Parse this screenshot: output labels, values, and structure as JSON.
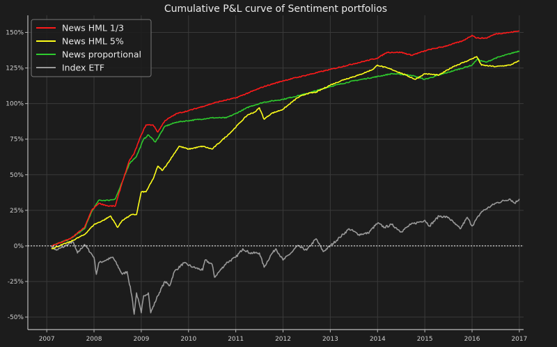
{
  "chart_data": {
    "type": "line",
    "title": "Cumulative P&L curve of Sentiment portfolios",
    "xlabel": "",
    "ylabel": "",
    "xlim": [
      2006.6,
      2017.09
    ],
    "ylim": [
      -58.8,
      162
    ],
    "grid": true,
    "legend_position": "top-left",
    "x_ticks": [
      2007,
      2008,
      2009,
      2010,
      2011,
      2012,
      2013,
      2014,
      2015,
      2016,
      2017
    ],
    "x_tick_labels": [
      "2007",
      "2008",
      "2009",
      "2010",
      "2011",
      "2012",
      "2013",
      "2014",
      "2015",
      "2016",
      "2017"
    ],
    "y_ticks": [
      -50,
      -25,
      0,
      25,
      50,
      75,
      100,
      125,
      150
    ],
    "y_tick_labels": [
      "-50%",
      "-25%",
      "0%",
      "25%",
      "50%",
      "75%",
      "100%",
      "125%",
      "150%"
    ],
    "reference_line": {
      "y": 0,
      "style": "dotted",
      "color": "#ffffff"
    },
    "colors": {
      "background": "#1c1c1c",
      "grid": "#3a3a3a",
      "axis": "#bbbbbb"
    },
    "series": [
      {
        "name": "News HML 1/3",
        "color": "#ff1a1a",
        "points": [
          [
            2007.1,
            0
          ],
          [
            2007.5,
            5
          ],
          [
            2007.8,
            13
          ],
          [
            2007.95,
            25
          ],
          [
            2008.1,
            30
          ],
          [
            2008.3,
            28
          ],
          [
            2008.45,
            28
          ],
          [
            2008.6,
            45
          ],
          [
            2008.75,
            60
          ],
          [
            2008.85,
            65
          ],
          [
            2009.0,
            78
          ],
          [
            2009.1,
            85
          ],
          [
            2009.25,
            85
          ],
          [
            2009.35,
            80
          ],
          [
            2009.5,
            88
          ],
          [
            2009.75,
            93
          ],
          [
            2010,
            95
          ],
          [
            2010.3,
            98
          ],
          [
            2010.6,
            101
          ],
          [
            2011,
            104
          ],
          [
            2011.3,
            108
          ],
          [
            2011.6,
            112
          ],
          [
            2012,
            116
          ],
          [
            2012.5,
            120
          ],
          [
            2013,
            124
          ],
          [
            2013.5,
            128
          ],
          [
            2014,
            132
          ],
          [
            2014.2,
            136
          ],
          [
            2014.5,
            136
          ],
          [
            2014.72,
            134
          ],
          [
            2015.1,
            138
          ],
          [
            2015.4,
            140
          ],
          [
            2015.8,
            144
          ],
          [
            2016,
            148
          ],
          [
            2016.1,
            146
          ],
          [
            2016.3,
            146
          ],
          [
            2016.5,
            149
          ],
          [
            2016.8,
            150
          ],
          [
            2017,
            151
          ]
        ]
      },
      {
        "name": "News HML 5%",
        "color": "#ffff1a",
        "points": [
          [
            2007.1,
            -2
          ],
          [
            2007.5,
            3
          ],
          [
            2007.8,
            8
          ],
          [
            2008,
            15
          ],
          [
            2008.2,
            18
          ],
          [
            2008.35,
            21
          ],
          [
            2008.5,
            13
          ],
          [
            2008.6,
            18
          ],
          [
            2008.8,
            22
          ],
          [
            2008.9,
            22
          ],
          [
            2009,
            38
          ],
          [
            2009.1,
            38
          ],
          [
            2009.25,
            47
          ],
          [
            2009.35,
            56
          ],
          [
            2009.45,
            53
          ],
          [
            2009.6,
            60
          ],
          [
            2009.8,
            70
          ],
          [
            2010,
            68
          ],
          [
            2010.3,
            70
          ],
          [
            2010.5,
            68
          ],
          [
            2010.7,
            74
          ],
          [
            2010.9,
            80
          ],
          [
            2011.1,
            87
          ],
          [
            2011.25,
            92
          ],
          [
            2011.4,
            94
          ],
          [
            2011.5,
            97
          ],
          [
            2011.6,
            89
          ],
          [
            2011.75,
            93
          ],
          [
            2012,
            96
          ],
          [
            2012.3,
            104
          ],
          [
            2012.5,
            107
          ],
          [
            2012.7,
            108
          ],
          [
            2013,
            113
          ],
          [
            2013.3,
            117
          ],
          [
            2013.6,
            120
          ],
          [
            2013.9,
            124
          ],
          [
            2014,
            127
          ],
          [
            2014.3,
            124
          ],
          [
            2014.6,
            120
          ],
          [
            2014.8,
            117
          ],
          [
            2015,
            121
          ],
          [
            2015.3,
            120
          ],
          [
            2015.6,
            126
          ],
          [
            2015.9,
            130
          ],
          [
            2016.1,
            133
          ],
          [
            2016.2,
            127
          ],
          [
            2016.5,
            126
          ],
          [
            2016.8,
            127
          ],
          [
            2017,
            130
          ]
        ]
      },
      {
        "name": "News proportional",
        "color": "#2ecc2e",
        "points": [
          [
            2007.1,
            0
          ],
          [
            2007.5,
            5
          ],
          [
            2007.8,
            12
          ],
          [
            2007.95,
            24
          ],
          [
            2008.1,
            32
          ],
          [
            2008.3,
            32
          ],
          [
            2008.45,
            33
          ],
          [
            2008.6,
            45
          ],
          [
            2008.75,
            58
          ],
          [
            2008.9,
            63
          ],
          [
            2009.05,
            75
          ],
          [
            2009.15,
            78
          ],
          [
            2009.3,
            73
          ],
          [
            2009.5,
            84
          ],
          [
            2009.75,
            87
          ],
          [
            2010,
            88
          ],
          [
            2010.5,
            90
          ],
          [
            2010.8,
            90
          ],
          [
            2011,
            93
          ],
          [
            2011.3,
            98
          ],
          [
            2011.6,
            101
          ],
          [
            2012,
            103
          ],
          [
            2012.5,
            107
          ],
          [
            2013,
            112
          ],
          [
            2013.5,
            116
          ],
          [
            2014,
            119
          ],
          [
            2014.3,
            121
          ],
          [
            2014.7,
            120
          ],
          [
            2015,
            117
          ],
          [
            2015.3,
            120
          ],
          [
            2015.6,
            123
          ],
          [
            2016,
            127
          ],
          [
            2016.1,
            131
          ],
          [
            2016.3,
            129
          ],
          [
            2016.5,
            132
          ],
          [
            2017,
            137
          ]
        ]
      },
      {
        "name": "Index ETF",
        "color": "#9a9a9a",
        "points": [
          [
            2007.1,
            0
          ],
          [
            2007.2,
            -3
          ],
          [
            2007.4,
            0
          ],
          [
            2007.55,
            3
          ],
          [
            2007.65,
            -5
          ],
          [
            2007.8,
            1
          ],
          [
            2008,
            -8
          ],
          [
            2008.05,
            -20
          ],
          [
            2008.1,
            -12
          ],
          [
            2008.4,
            -8
          ],
          [
            2008.6,
            -20
          ],
          [
            2008.7,
            -18
          ],
          [
            2008.8,
            -35
          ],
          [
            2008.85,
            -48
          ],
          [
            2008.9,
            -33
          ],
          [
            2009.0,
            -47
          ],
          [
            2009.05,
            -35
          ],
          [
            2009.15,
            -33
          ],
          [
            2009.2,
            -47
          ],
          [
            2009.35,
            -35
          ],
          [
            2009.5,
            -25
          ],
          [
            2009.6,
            -28
          ],
          [
            2009.7,
            -18
          ],
          [
            2009.9,
            -12
          ],
          [
            2010.1,
            -15
          ],
          [
            2010.3,
            -17
          ],
          [
            2010.35,
            -10
          ],
          [
            2010.5,
            -13
          ],
          [
            2010.55,
            -22
          ],
          [
            2010.8,
            -12
          ],
          [
            2011,
            -8
          ],
          [
            2011.15,
            -2
          ],
          [
            2011.3,
            -5
          ],
          [
            2011.5,
            -5
          ],
          [
            2011.6,
            -15
          ],
          [
            2011.75,
            -6
          ],
          [
            2011.85,
            -2
          ],
          [
            2012,
            -10
          ],
          [
            2012.2,
            -4
          ],
          [
            2012.3,
            0
          ],
          [
            2012.5,
            -3
          ],
          [
            2012.7,
            5
          ],
          [
            2012.85,
            -4
          ],
          [
            2013,
            0
          ],
          [
            2013.2,
            6
          ],
          [
            2013.4,
            12
          ],
          [
            2013.6,
            8
          ],
          [
            2013.8,
            9
          ],
          [
            2014,
            16
          ],
          [
            2014.15,
            13
          ],
          [
            2014.3,
            15
          ],
          [
            2014.5,
            10
          ],
          [
            2014.7,
            15
          ],
          [
            2015,
            18
          ],
          [
            2015.1,
            14
          ],
          [
            2015.3,
            21
          ],
          [
            2015.5,
            20
          ],
          [
            2015.65,
            15
          ],
          [
            2015.75,
            12
          ],
          [
            2015.9,
            20
          ],
          [
            2016,
            14
          ],
          [
            2016.2,
            24
          ],
          [
            2016.5,
            30
          ],
          [
            2016.8,
            33
          ],
          [
            2016.9,
            30
          ],
          [
            2017,
            33
          ]
        ]
      }
    ]
  }
}
